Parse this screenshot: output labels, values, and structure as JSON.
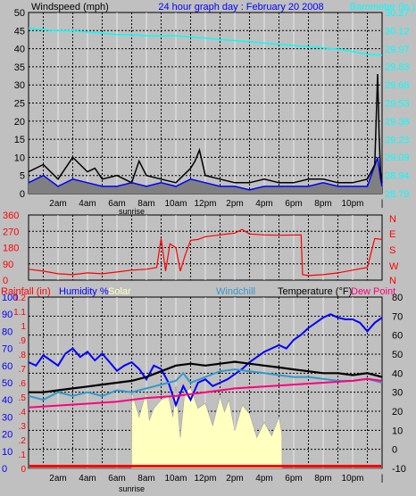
{
  "header": {
    "left_label": "Windspeed (mph)",
    "title": "24 hour graph day : February 20 2008",
    "right_label": "Barometer (in.)"
  },
  "bottom_header": {
    "rainfall": "Rainfall (in)",
    "humidity": "Humidity %",
    "solar": "Solar",
    "windchill": "Windchill",
    "temperature": "Temperature (°F)",
    "dewpoint": "Dew Point"
  },
  "time_labels": [
    "2am",
    "4am",
    "6am",
    "8am",
    "10am",
    "12pm",
    "2pm",
    "4pm",
    "6pm",
    "8pm",
    "10pm"
  ],
  "sunrise_label": "sunrise",
  "colors": {
    "bg": "#c0c0c0",
    "grid": "#000000",
    "wind_avg": "#000000",
    "wind_gust": "#0000ff",
    "wind_fill": "#808080",
    "barometer": "#00ffff",
    "direction": "#ff0000",
    "humidity": "#0000ff",
    "solar": "#ffffc0",
    "windchill": "#3399cc",
    "temperature": "#000000",
    "dewpoint": "#ff0080",
    "rain": "#ff0000"
  },
  "chart_data": [
    {
      "type": "line",
      "name": "wind-barometer",
      "x_hours": [
        0,
        24
      ],
      "wind_axis": [
        0,
        5,
        10,
        15,
        20,
        25,
        30,
        35,
        40,
        45,
        50
      ],
      "wind_ylim": [
        0,
        50
      ],
      "baro_axis": [
        "28.79",
        "28.94",
        "29.09",
        "29.23",
        "29.38",
        "29.53",
        "29.68",
        "29.83",
        "29.97",
        "30.12",
        "30.27"
      ],
      "baro_ylim": [
        28.79,
        30.27
      ],
      "barometer": {
        "x": [
          0,
          1,
          2,
          3,
          4,
          5,
          6,
          7,
          8,
          9,
          10,
          11,
          12,
          13,
          14,
          15,
          16,
          17,
          18,
          19,
          20,
          21,
          22,
          23,
          24
        ],
        "y": [
          30.14,
          30.13,
          30.12,
          30.12,
          30.11,
          30.1,
          30.09,
          30.09,
          30.08,
          30.08,
          30.08,
          30.07,
          30.06,
          30.05,
          30.04,
          30.03,
          30.02,
          30.01,
          30.0,
          29.99,
          29.98,
          29.97,
          29.95,
          29.93,
          29.92
        ]
      },
      "wind_avg": {
        "x": [
          0,
          1,
          2,
          3,
          4,
          4.5,
          5,
          6,
          7,
          7.5,
          8,
          9,
          10,
          10.5,
          11,
          11.3,
          11.6,
          12,
          13,
          14,
          15,
          16,
          17,
          18,
          19,
          20,
          21,
          22,
          23,
          23.5,
          23.7,
          23.8,
          23.9,
          24
        ],
        "y": [
          6,
          8,
          4,
          10,
          6,
          7,
          4,
          5,
          3,
          9,
          5,
          4,
          3,
          5,
          7,
          9,
          12,
          5,
          4,
          3,
          3,
          4,
          3,
          3,
          4,
          4,
          3,
          3,
          4,
          8,
          33,
          16,
          6,
          3
        ]
      },
      "wind_gust": {
        "x": [
          0,
          1,
          2,
          3,
          4,
          5,
          6,
          7,
          8,
          9,
          10,
          11,
          12,
          13,
          14,
          15,
          16,
          17,
          18,
          19,
          20,
          21,
          22,
          23,
          23.7,
          23.9,
          24
        ],
        "y": [
          3,
          5,
          2,
          4,
          3,
          2,
          2,
          3,
          2,
          3,
          2,
          4,
          3,
          2,
          2,
          1,
          2,
          2,
          2,
          2,
          3,
          2,
          2,
          2,
          10,
          4,
          2
        ]
      }
    },
    {
      "type": "line",
      "name": "wind-direction",
      "y_axis": [
        "0",
        "90",
        "180",
        "270",
        "360"
      ],
      "compass": [
        "N",
        "W",
        "S",
        "E",
        "N"
      ],
      "ylim": [
        0,
        360
      ],
      "direction": {
        "x": [
          0,
          1,
          2,
          3,
          4,
          5,
          6,
          7,
          8,
          8.7,
          9,
          9.3,
          9.6,
          10,
          10.3,
          10.6,
          11,
          11.5,
          12,
          13,
          14,
          14.5,
          15,
          16,
          17,
          18.5,
          18.6,
          19,
          20,
          21,
          22,
          23,
          23.5,
          24
        ],
        "y": [
          60,
          50,
          35,
          30,
          40,
          35,
          45,
          55,
          60,
          70,
          230,
          50,
          200,
          180,
          50,
          130,
          220,
          225,
          240,
          250,
          260,
          280,
          255,
          250,
          248,
          250,
          30,
          25,
          30,
          40,
          55,
          70,
          230,
          225
        ]
      }
    },
    {
      "type": "line",
      "name": "weather-bottom",
      "left_pct_axis": [
        "0",
        "10",
        "20",
        "30",
        "40",
        "50",
        "60",
        "70",
        "80",
        "90",
        "100"
      ],
      "left_rain_axis": [
        "0",
        ".1",
        ".2",
        ".3",
        ".4",
        ".5",
        ".6",
        ".7",
        ".8",
        ".9",
        "1",
        "1.1",
        "1.2"
      ],
      "right_temp_axis": [
        "-10",
        "0",
        "10",
        "20",
        "30",
        "40",
        "50",
        "60",
        "70",
        "80"
      ],
      "ylim_pct": [
        0,
        100
      ],
      "ylim_temp": [
        -10,
        80
      ],
      "humidity": {
        "x": [
          0,
          0.5,
          1,
          1.5,
          2,
          2.5,
          3,
          3.5,
          4,
          4.5,
          5,
          5.5,
          6,
          6.5,
          7,
          7.5,
          8,
          8.5,
          9,
          9.5,
          10,
          10.5,
          11,
          11.5,
          12,
          12.5,
          13,
          13.5,
          14,
          14.5,
          15,
          15.5,
          16,
          16.5,
          17,
          17.5,
          18,
          18.5,
          19,
          19.5,
          20,
          20.5,
          21,
          21.5,
          22,
          22.5,
          23,
          23.5,
          24
        ],
        "y": [
          62,
          60,
          66,
          63,
          60,
          67,
          70,
          65,
          68,
          63,
          67,
          62,
          57,
          60,
          62,
          58,
          52,
          60,
          58,
          50,
          37,
          48,
          40,
          50,
          52,
          48,
          50,
          52,
          55,
          58,
          62,
          65,
          68,
          70,
          72,
          70,
          75,
          78,
          82,
          85,
          88,
          90,
          88,
          87,
          87,
          85,
          80,
          85,
          88
        ]
      },
      "solar": {
        "x": [
          0,
          6.99,
          7,
          7.5,
          8,
          8.2,
          8.5,
          9,
          9.5,
          9.8,
          10,
          10.3,
          10.6,
          11,
          11.5,
          12,
          12.5,
          13,
          13.3,
          13.6,
          14,
          14.5,
          15,
          15.5,
          16,
          16.5,
          17,
          17.2,
          17.21,
          24
        ],
        "y": [
          0,
          0,
          45,
          30,
          45,
          28,
          35,
          40,
          42,
          30,
          48,
          18,
          44,
          47,
          35,
          38,
          25,
          42,
          33,
          40,
          22,
          37,
          32,
          18,
          27,
          19,
          30,
          20,
          0,
          0
        ]
      },
      "windchill": {
        "x": [
          0,
          1,
          2,
          3,
          4,
          5,
          6,
          7,
          8,
          9,
          10,
          10.5,
          11,
          12,
          13,
          14,
          15,
          16,
          17,
          18,
          19,
          20,
          21,
          22,
          23,
          24
        ],
        "y": [
          28,
          26,
          30,
          28,
          30,
          28,
          31,
          30,
          32,
          34,
          36,
          40,
          35,
          38,
          41,
          42,
          41,
          40,
          39,
          38,
          38,
          37,
          36,
          36,
          37,
          35
        ]
      },
      "temperature": {
        "x": [
          0,
          1,
          2,
          3,
          4,
          5,
          6,
          7,
          8,
          9,
          10,
          11,
          12,
          13,
          14,
          15,
          16,
          17,
          18,
          19,
          20,
          21,
          22,
          23,
          24
        ],
        "y": [
          30,
          30,
          31,
          32,
          33,
          34,
          35,
          36,
          38,
          41,
          44,
          45,
          44,
          45,
          46,
          45,
          44,
          43,
          42,
          41,
          40,
          40,
          39,
          40,
          38
        ]
      },
      "dewpoint": {
        "x": [
          0,
          2,
          4,
          6,
          8,
          10,
          12,
          14,
          16,
          18,
          20,
          22,
          23,
          24
        ],
        "y": [
          22,
          23,
          24,
          25,
          27,
          28,
          30,
          32,
          33,
          34,
          35,
          36,
          37,
          36
        ]
      },
      "rain": {
        "x": [
          0,
          24
        ],
        "y": [
          0,
          0
        ]
      }
    }
  ]
}
